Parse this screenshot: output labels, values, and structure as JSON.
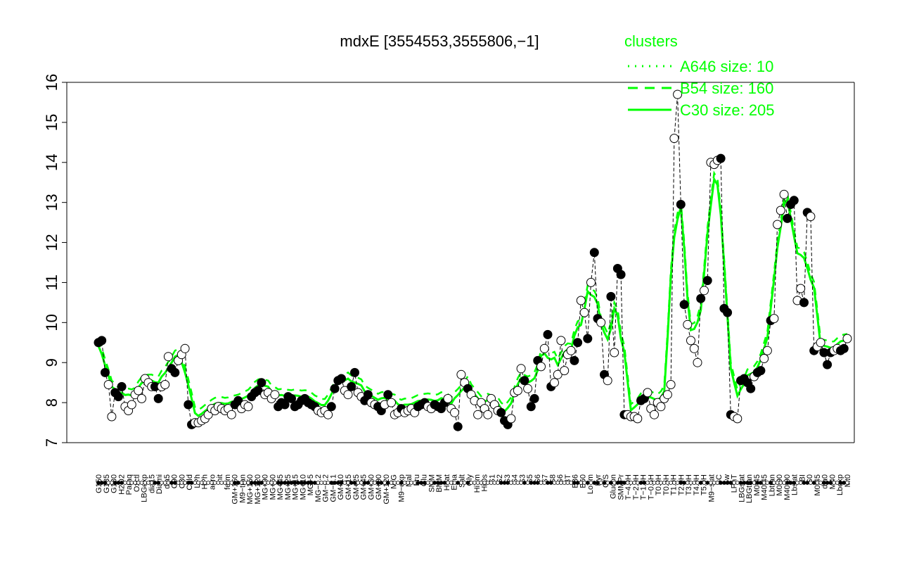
{
  "chart_data": {
    "type": "line",
    "title": "mdxE [3554553,3555806,−1]",
    "ylim": [
      7,
      16
    ],
    "yticks": [
      7,
      8,
      9,
      10,
      11,
      12,
      13,
      14,
      15,
      16
    ],
    "grid": false,
    "legend": {
      "title": "clusters",
      "placement": "top-right",
      "entries": [
        {
          "label": "A646 size: 10",
          "style": "dotted"
        },
        {
          "label": "B54 size: 160",
          "style": "dashed"
        },
        {
          "label": "C30 size: 205",
          "style": "solid"
        }
      ]
    },
    "x_tick_labels": [
      "G150",
      "G135",
      "G180",
      "H2O2",
      "Paraq",
      "Oxctl",
      "LBGexp",
      "dia15",
      "Diami",
      "dia5",
      "C90",
      "C30",
      "Cold",
      "LPh",
      "HPh",
      "aero",
      "nit",
      "ferm",
      "GM+150",
      "M9−tran",
      "MG+150",
      "MG+120",
      "MG+90",
      "MG+60",
      "MG+45",
      "MG+25",
      "MG+15",
      "MG+10",
      "MG+5",
      "MG−0.2",
      "GM−0.2",
      "GM−0.1",
      "GM+10",
      "GM+15",
      "GM+25",
      "GM+45",
      "GM+60",
      "GM+90",
      "GM+120",
      "M/G",
      "M9−exp",
      "Mal",
      "Fru",
      "Glu",
      "SMM",
      "BMM",
      "Heat",
      "Etha",
      "Salt",
      "Gly",
      "HiTm",
      "HiOs",
      "S1",
      "S2",
      "S3",
      "S4",
      "S3",
      "S5",
      "S6",
      "S7",
      "S8",
      "S6",
      "BT",
      "B36",
      "B60",
      "LoTm",
      "Pyr",
      "G/S",
      "Glucon",
      "SMMPr",
      "T−4.0H",
      "T−2.0H",
      "T−1.0H",
      "T−0.5H",
      "T0.0H",
      "T0.5H",
      "T1.0H",
      "T2.0H",
      "T3.0H",
      "T4.0H",
      "T5.0H",
      "M9−stat",
      "BC",
      "Sw",
      "LPhT",
      "LBGstat",
      "LBGtran",
      "M0t45",
      "M40t45",
      "Lbtran",
      "M0t90",
      "M40t90",
      "Lbstat",
      "BI",
      "S0",
      "M0t45",
      "dia0",
      "M40",
      "Lbexp",
      "Mt0"
    ],
    "series": [
      {
        "name": "mdxE",
        "values": [
          9.5,
          9.55,
          8.75,
          8.45,
          7.65,
          8.25,
          8.15,
          8.4,
          7.9,
          7.8,
          7.95,
          8.2,
          8.3,
          8.1,
          8.6,
          8.5,
          8.4,
          8.4,
          8.1,
          8.4,
          8.45,
          9.15,
          8.85,
          8.75,
          9.05,
          9.2,
          9.35,
          7.95,
          7.45,
          7.5,
          7.5,
          7.55,
          7.6,
          7.7,
          7.85,
          7.8,
          7.9,
          7.85,
          7.8,
          7.85,
          7.7,
          7.95,
          8.05,
          7.85,
          7.95,
          7.9,
          8.15,
          8.25,
          8.3,
          8.5,
          8.2,
          8.25,
          8.1,
          8.2,
          7.9,
          8.0,
          7.95,
          8.15,
          8.1,
          7.9,
          7.95,
          8.05,
          8.1,
          8.0,
          7.95,
          7.9,
          7.8,
          7.75,
          7.8,
          7.7,
          7.9,
          8.35,
          8.55,
          8.6,
          8.3,
          8.2,
          8.4,
          8.75,
          8.25,
          8.15,
          8.05,
          8.2,
          8.0,
          7.95,
          7.9,
          7.8,
          7.95,
          8.2,
          8.0,
          7.7,
          7.75,
          7.85,
          7.75,
          7.8,
          7.85,
          7.75,
          7.9,
          7.95,
          8.0,
          7.9,
          7.85,
          7.95,
          7.9,
          7.85,
          8.0,
          8.1,
          7.85,
          7.75,
          7.4,
          8.7,
          8.5,
          8.35,
          8.2,
          8.05,
          7.7,
          8.0,
          7.85,
          7.7,
          8.1,
          7.95,
          7.8,
          7.75,
          7.55,
          7.45,
          7.6,
          8.25,
          8.3,
          8.85,
          8.55,
          8.35,
          7.9,
          8.1,
          9.05,
          8.9,
          9.35,
          9.7,
          8.4,
          8.5,
          8.7,
          9.55,
          8.8,
          9.2,
          9.3,
          9.05,
          9.5,
          10.55,
          10.25,
          9.6,
          11.0,
          11.75,
          10.1,
          10.0,
          8.7,
          8.55,
          10.65,
          9.25,
          11.35,
          11.2,
          7.7,
          7.7,
          7.65,
          7.65,
          7.6,
          8.05,
          8.1,
          8.25,
          7.85,
          7.7,
          8.0,
          7.9,
          8.1,
          8.2,
          8.45,
          14.6,
          15.7,
          12.95,
          10.45,
          9.95,
          9.55,
          9.35,
          9.0,
          10.6,
          10.8,
          11.05,
          14.0,
          13.95,
          14.05,
          14.1,
          10.35,
          10.25,
          7.7,
          7.65,
          7.6,
          8.55,
          8.6,
          8.5,
          8.35,
          8.65,
          8.75,
          8.8,
          9.1,
          9.3,
          10.05,
          10.1,
          12.45,
          12.8,
          13.2,
          12.6,
          12.95,
          13.05,
          10.55,
          10.85,
          10.5,
          12.75,
          12.65,
          9.3,
          9.4,
          9.5,
          9.25,
          8.95,
          9.25,
          9.3,
          9.35,
          9.3,
          9.35,
          9.6
        ],
        "open_markers": [
          false,
          false,
          false,
          true,
          true,
          false,
          false,
          false,
          true,
          true,
          true,
          true,
          true,
          true,
          true,
          true,
          true,
          false,
          false,
          true,
          true,
          true,
          false,
          false,
          true,
          true,
          true,
          false,
          false,
          true,
          true,
          true,
          true,
          true,
          true,
          true,
          true,
          true,
          true,
          true,
          true,
          false,
          false,
          true,
          true,
          true,
          false,
          false,
          false,
          false,
          true,
          true,
          true,
          true,
          false,
          false,
          false,
          false,
          false,
          false,
          false,
          false,
          false,
          false,
          false,
          false,
          true,
          true,
          true,
          true,
          false,
          false,
          false,
          false,
          true,
          true,
          false,
          false,
          true,
          true,
          false,
          false,
          true,
          true,
          false,
          false,
          true,
          false,
          true,
          true,
          true,
          false,
          true,
          true,
          true,
          true,
          false,
          false,
          false,
          true,
          true,
          false,
          false,
          false,
          false,
          true,
          true,
          true,
          false,
          true,
          true,
          false,
          true,
          true,
          true,
          true,
          true,
          true,
          true,
          true,
          true,
          false,
          false,
          false,
          true,
          true,
          true,
          true,
          false,
          true,
          false,
          false,
          false,
          true,
          true,
          false,
          false,
          true,
          true,
          true,
          true,
          true,
          true,
          false,
          false,
          true,
          true,
          false,
          true,
          false,
          false,
          true,
          false,
          true,
          false,
          true,
          false,
          false,
          false,
          true,
          true,
          true,
          true,
          false,
          false,
          true,
          true,
          true,
          true,
          true,
          true,
          true,
          true,
          true,
          true,
          false,
          false,
          true,
          true,
          true,
          true,
          false,
          true,
          false,
          true,
          true,
          true,
          false,
          false,
          false,
          false,
          true,
          true,
          false,
          false,
          false,
          false,
          true,
          false,
          false,
          true,
          true,
          false,
          true,
          true,
          true,
          true,
          false,
          false,
          false,
          true,
          true,
          false,
          false,
          true,
          false,
          true,
          true,
          false,
          false,
          false,
          true,
          true,
          false,
          false,
          true,
          true,
          true,
          true,
          true,
          false
        ]
      }
    ],
    "cluster_lines": [
      {
        "name": "A646 size: 10",
        "style": "dotted"
      },
      {
        "name": "B54 size: 160",
        "style": "dashed"
      },
      {
        "name": "C30 size: 205",
        "style": "solid"
      }
    ]
  },
  "colors": {
    "cluster_line": "#00ff00",
    "data_line": "#000000",
    "background": "#ffffff"
  }
}
